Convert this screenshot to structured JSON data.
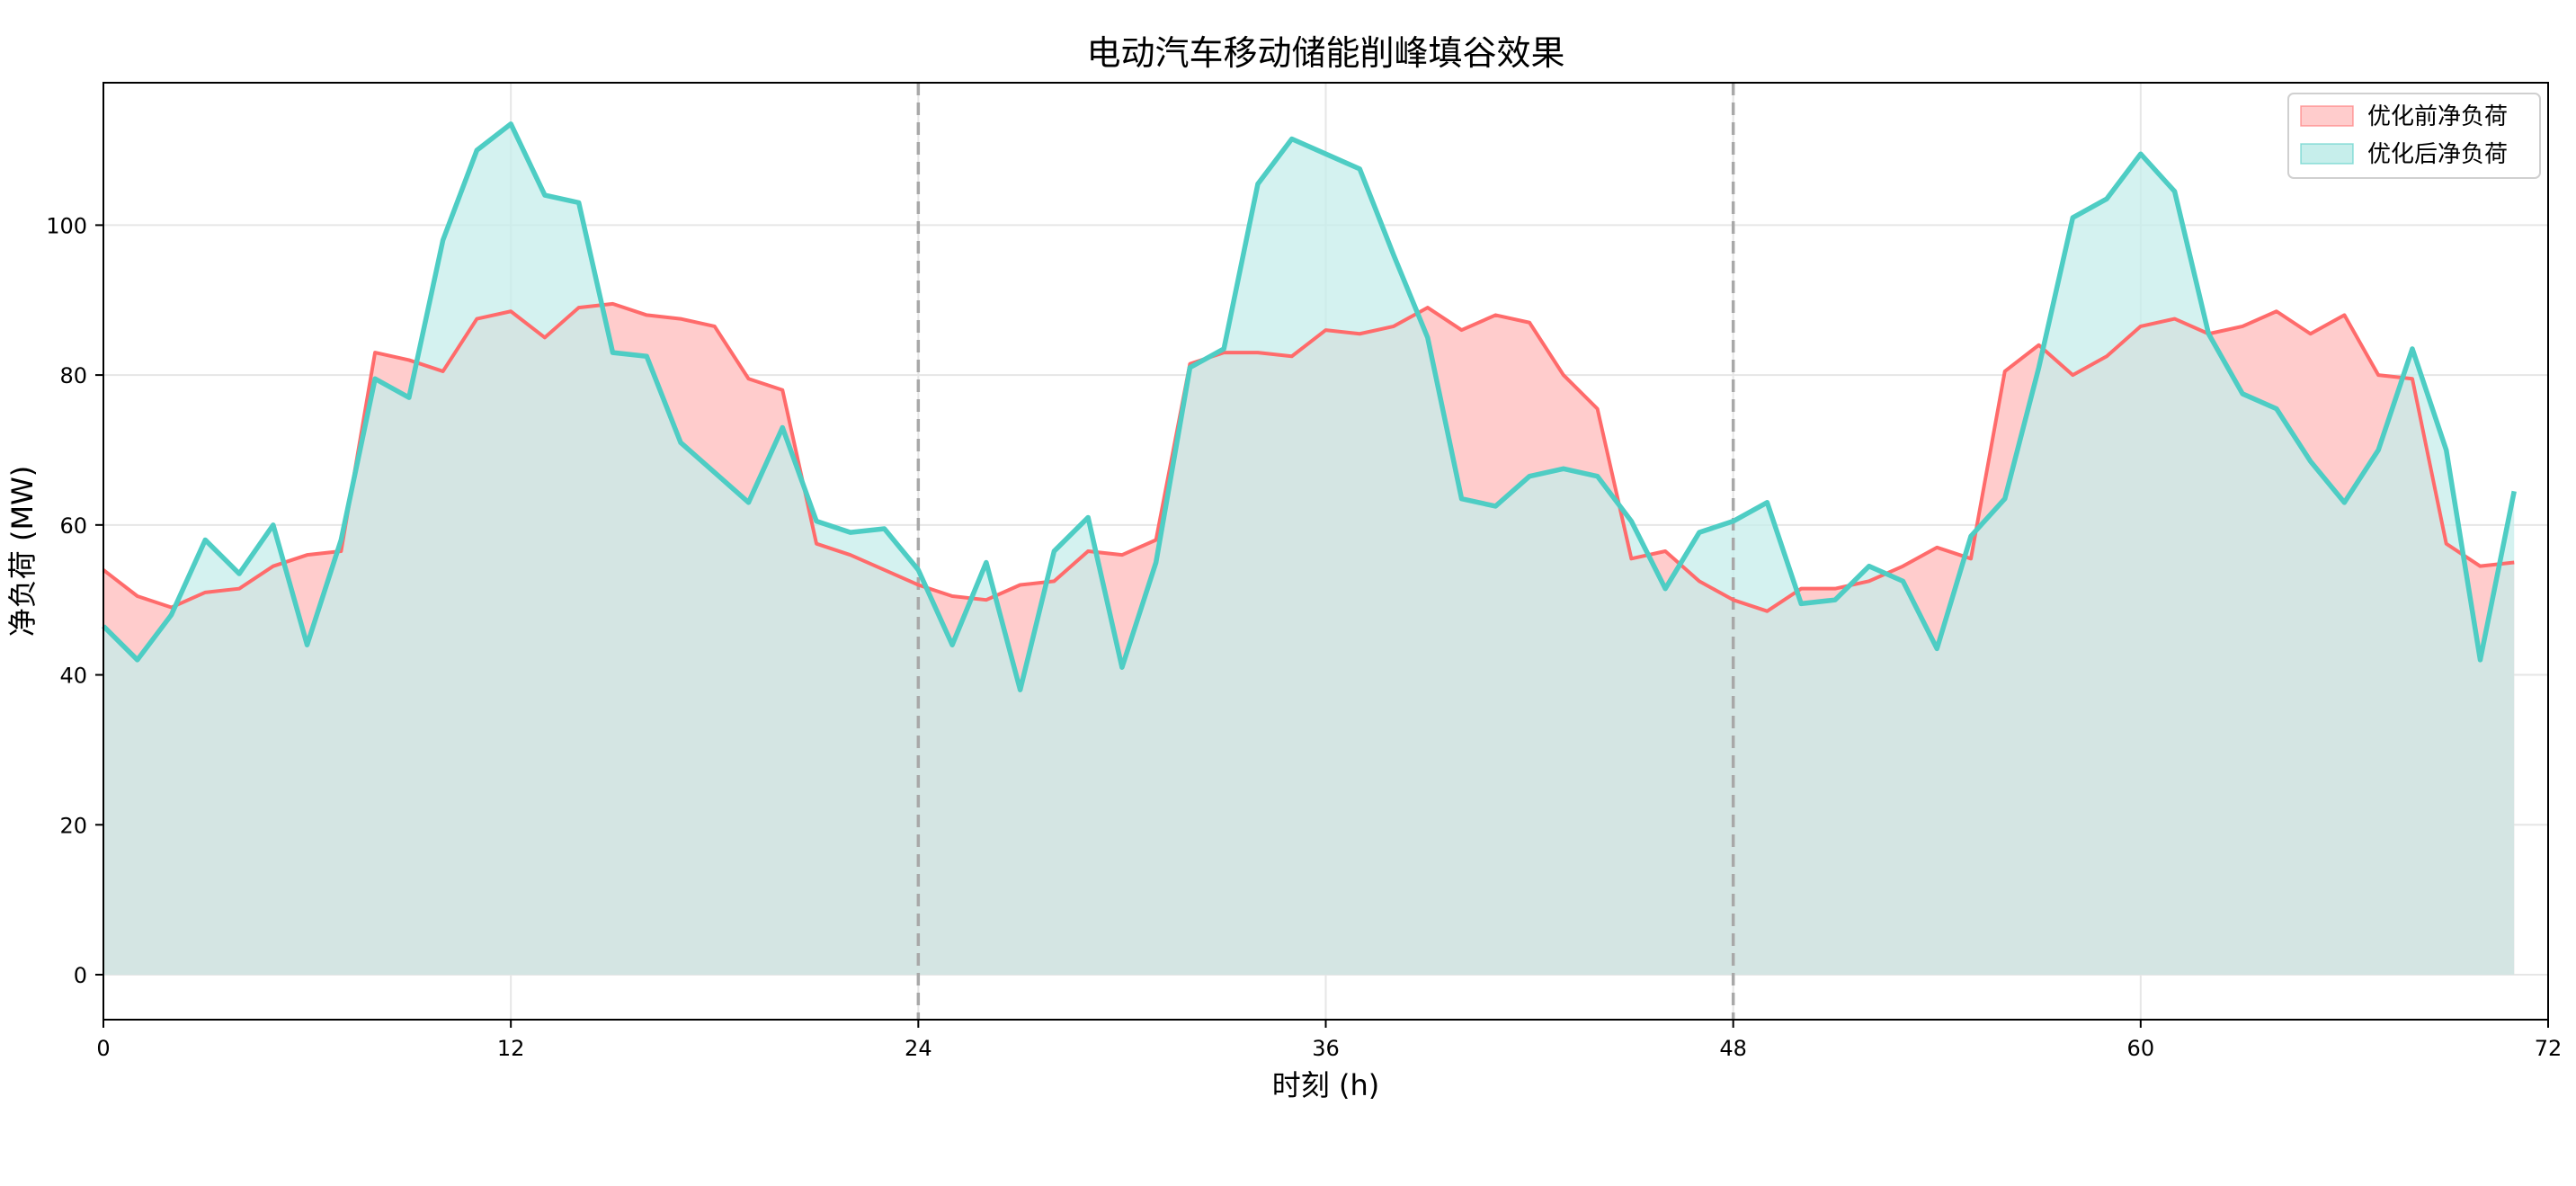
{
  "chart_data": {
    "type": "area",
    "title": "电动汽车移动储能削峰填谷效果",
    "xlabel": "时刻 (h)",
    "ylabel": "净负荷 (MW)",
    "xlim": [
      0,
      72
    ],
    "ylim": [
      -6,
      119
    ],
    "xticks": [
      0,
      12,
      24,
      36,
      48,
      60,
      72
    ],
    "yticks": [
      0,
      20,
      40,
      60,
      80,
      100
    ],
    "grid": true,
    "legend_position": "top-right",
    "vlines": [
      24,
      48
    ],
    "x": [
      0,
      1,
      2,
      3,
      4,
      5,
      6,
      7,
      8,
      9,
      10,
      11,
      12,
      13,
      14,
      15,
      16,
      17,
      18,
      19,
      20,
      21,
      22,
      23,
      24,
      25,
      26,
      27,
      28,
      29,
      30,
      31,
      32,
      33,
      34,
      35,
      36,
      37,
      38,
      39,
      40,
      41,
      42,
      43,
      44,
      45,
      46,
      47,
      48,
      49,
      50,
      51,
      52,
      53,
      54,
      55,
      56,
      57,
      58,
      59,
      60,
      61,
      62,
      63,
      64,
      65,
      66,
      67,
      68,
      69,
      70,
      71
    ],
    "series": [
      {
        "name": "优化前净负荷",
        "color": "#ff6b6b",
        "fill": "#ffcccc",
        "values": [
          54,
          50.5,
          49,
          51,
          51.5,
          54.5,
          56,
          56.5,
          83,
          82,
          80.5,
          87.5,
          88.5,
          85,
          89,
          89.5,
          88,
          87.5,
          86.5,
          79.5,
          78,
          57.5,
          56,
          54,
          52,
          50.5,
          50,
          52,
          52.5,
          56.5,
          56,
          58,
          81.5,
          83,
          83,
          82.5,
          86,
          85.5,
          86.5,
          89,
          86,
          88,
          87,
          80,
          75.5,
          55.5,
          56.5,
          52.5,
          50,
          48.5,
          51.5,
          51.5,
          52.5,
          54.5,
          57,
          55.5,
          80.5,
          84,
          80,
          82.5,
          86.5,
          87.5,
          85.5,
          86.5,
          88.5,
          85.5,
          88,
          80,
          79.5,
          57.5,
          54.5,
          55
        ]
      },
      {
        "name": "优化后净负荷",
        "color": "#4ecdc4",
        "fill": "#c6eeeb",
        "values": [
          46.5,
          42,
          48,
          58,
          53.5,
          60,
          44,
          58,
          79.5,
          77,
          98,
          110,
          113.5,
          104,
          103,
          83,
          82.5,
          71,
          67,
          63,
          73,
          60.5,
          59,
          59.5,
          54,
          44,
          55,
          38,
          56.5,
          61,
          41,
          55,
          81,
          83.5,
          105.5,
          111.5,
          109.5,
          107.5,
          96,
          85,
          63.5,
          62.5,
          66.5,
          67.5,
          66.5,
          60.5,
          51.5,
          59,
          60.5,
          63,
          49.5,
          50,
          54.5,
          52.5,
          43.5,
          58.5,
          63.5,
          81,
          101,
          103.5,
          109.5,
          104.5,
          85.5,
          77.5,
          75.5,
          68.5,
          63,
          70,
          83.5,
          70,
          42,
          64.5
        ]
      }
    ]
  }
}
